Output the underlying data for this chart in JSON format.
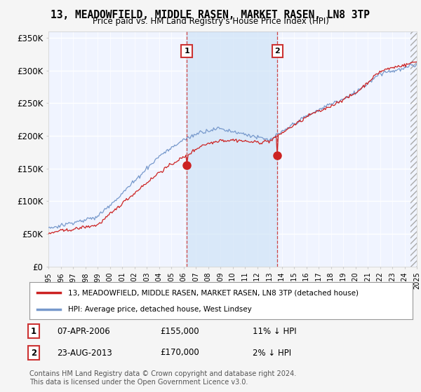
{
  "title": "13, MEADOWFIELD, MIDDLE RASEN, MARKET RASEN, LN8 3TP",
  "subtitle": "Price paid vs. HM Land Registry's House Price Index (HPI)",
  "ylim": [
    0,
    360000
  ],
  "yticks": [
    0,
    50000,
    100000,
    150000,
    200000,
    250000,
    300000,
    350000
  ],
  "ytick_labels": [
    "£0",
    "£50K",
    "£100K",
    "£150K",
    "£200K",
    "£250K",
    "£300K",
    "£350K"
  ],
  "background_color": "#f5f5f5",
  "plot_bg_color": "#f0f4ff",
  "grid_color": "#ffffff",
  "shade_color": "#d0e4f7",
  "sale1_date": 2006.27,
  "sale1_price": 155000,
  "sale2_date": 2013.65,
  "sale2_price": 170000,
  "line1_color": "#cc2222",
  "line2_color": "#7799cc",
  "marker_color": "#cc2222",
  "vline_color": "#cc3333",
  "legend1_label": "13, MEADOWFIELD, MIDDLE RASEN, MARKET RASEN, LN8 3TP (detached house)",
  "legend2_label": "HPI: Average price, detached house, West Lindsey",
  "footnote": "Contains HM Land Registry data © Crown copyright and database right 2024.\nThis data is licensed under the Open Government Licence v3.0.",
  "xstart": 1995,
  "xend": 2025
}
